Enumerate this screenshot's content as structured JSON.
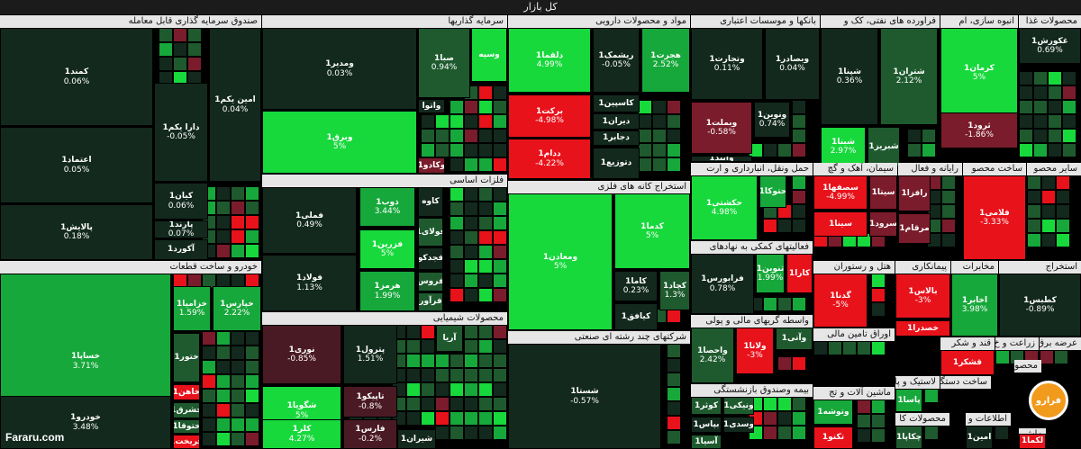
{
  "title": "کل بازار",
  "watermark_text": "Fararu.com",
  "watermark_logo": "فرارو",
  "colors": {
    "dark": "#13291e",
    "mid": "#1e5a2e",
    "green": "#17a83b",
    "bright": "#17d93c",
    "red": "#e8121b",
    "dred": "#7a1c2b",
    "wine": "#4a1a24"
  },
  "chart_data": {
    "type": "treemap",
    "title": "کل بازار",
    "sectors": [
      {
        "name": "صندوق سرمایه گذاری قابل معامله",
        "stocks": [
          {
            "name": "کمند1",
            "change": "0.06%"
          },
          {
            "name": "دارا یکم1",
            "change": "-0.05%"
          },
          {
            "name": "امین یکم1",
            "change": "0.04%"
          },
          {
            "name": "اعتماد1",
            "change": "0.05%"
          },
          {
            "name": "کیان1",
            "change": "0.06%"
          },
          {
            "name": "پالایش1",
            "change": "0.18%"
          },
          {
            "name": "پارند1",
            "change": "0.07%"
          },
          {
            "name": "آکورد1",
            "change": ""
          }
        ]
      },
      {
        "name": "سرمایه گذاریها",
        "stocks": [
          {
            "name": "ومدیر1",
            "change": "0.03%"
          },
          {
            "name": "صبا1",
            "change": "0.94%"
          },
          {
            "name": "وبرق1",
            "change": "5%"
          },
          {
            "name": "وسپه",
            "change": ""
          },
          {
            "name": "واتوا",
            "change": ""
          },
          {
            "name": "وکادو1",
            "change": ""
          }
        ]
      },
      {
        "name": "فلزات اساسی",
        "stocks": [
          {
            "name": "فملی1",
            "change": "0.49%"
          },
          {
            "name": "ذوب1",
            "change": "3.44%"
          },
          {
            "name": "فزرین1",
            "change": "5%"
          },
          {
            "name": "فولاد1",
            "change": "1.13%"
          },
          {
            "name": "هرمز1",
            "change": "1.99%"
          },
          {
            "name": "کاوه",
            "change": ""
          },
          {
            "name": "فولای1",
            "change": ""
          },
          {
            "name": "فجدکو",
            "change": ""
          },
          {
            "name": "فروس",
            "change": ""
          },
          {
            "name": "فرآور",
            "change": ""
          }
        ]
      },
      {
        "name": "محصولات شیمیایی",
        "stocks": [
          {
            "name": "نوری1",
            "change": "-0.85%"
          },
          {
            "name": "پترول1",
            "change": "1.51%"
          },
          {
            "name": "شگویا1",
            "change": "5%"
          },
          {
            "name": "تاپیکو1",
            "change": "-0.8%"
          },
          {
            "name": "کلر1",
            "change": "4.27%"
          },
          {
            "name": "فارس1",
            "change": "-0.2%"
          },
          {
            "name": "آریا",
            "change": ""
          },
          {
            "name": "شیران1",
            "change": ""
          }
        ]
      },
      {
        "name": "مواد و محصولات دارویی",
        "stocks": [
          {
            "name": "دلقما1",
            "change": "4.99%"
          },
          {
            "name": "ریشمک1",
            "change": "-0.05%"
          },
          {
            "name": "هجرت1",
            "change": "2.52%"
          },
          {
            "name": "برکت1",
            "change": "-4.98%"
          },
          {
            "name": "کاسپین1",
            "change": ""
          },
          {
            "name": "دیران1",
            "change": ""
          },
          {
            "name": "دجابر1",
            "change": ""
          },
          {
            "name": "ددام1",
            "change": "-4.22%"
          },
          {
            "name": "دتوزیع1",
            "change": ""
          }
        ]
      },
      {
        "name": "استخراج کانه های فلزی",
        "stocks": [
          {
            "name": "کدما1",
            "change": "5%"
          },
          {
            "name": "ومعادن1",
            "change": "5%"
          },
          {
            "name": "کاما1",
            "change": "0.23%"
          },
          {
            "name": "کچاد1",
            "change": "1.3%"
          },
          {
            "name": "کیافق1",
            "change": ""
          }
        ]
      },
      {
        "name": "شرکتهای چند رشته ای صنعتی",
        "stocks": [
          {
            "name": "شستا1",
            "change": "-0.57%"
          }
        ]
      },
      {
        "name": "خودرو و ساخت قطعات",
        "stocks": [
          {
            "name": "خساپا1",
            "change": "3.71%"
          },
          {
            "name": "خزامیا1",
            "change": "1.59%"
          },
          {
            "name": "خپارس1",
            "change": "2.22%"
          },
          {
            "name": "ختور1",
            "change": ""
          },
          {
            "name": "خاهن1",
            "change": ""
          },
          {
            "name": "خشرق1",
            "change": ""
          },
          {
            "name": "خودرو1",
            "change": "3.48%"
          },
          {
            "name": "ختوقا1",
            "change": ""
          },
          {
            "name": "خریخت1",
            "change": ""
          }
        ]
      },
      {
        "name": "بانکها و موسسات اعتباری",
        "stocks": [
          {
            "name": "وتجارت1",
            "change": "0.11%"
          },
          {
            "name": "وبصادر1",
            "change": "0.04%"
          },
          {
            "name": "وبملت1",
            "change": "-0.58%"
          },
          {
            "name": "ونوین1",
            "change": "0.74%"
          },
          {
            "name": "وآیند1",
            "change": ""
          }
        ]
      },
      {
        "name": "فراورده های نفتی، کک و",
        "stocks": [
          {
            "name": "شپنا1",
            "change": "0.36%"
          },
          {
            "name": "شتران1",
            "change": "2.12%"
          },
          {
            "name": "شبنا1",
            "change": "2.97%"
          },
          {
            "name": "شبریز1",
            "change": ""
          }
        ]
      },
      {
        "name": "انبوه سازی، ام",
        "stocks": [
          {
            "name": "کرمان1",
            "change": "5%"
          },
          {
            "name": "ثرود1",
            "change": "-1.86%"
          }
        ]
      },
      {
        "name": "محصولات غذا",
        "stocks": [
          {
            "name": "غکورش1",
            "change": "0.69%"
          }
        ]
      },
      {
        "name": "حمل ونقل، انبارداری و ارت",
        "stocks": [
          {
            "name": "حکشتی1",
            "change": "4.98%"
          },
          {
            "name": "حتوکا1",
            "change": ""
          }
        ]
      },
      {
        "name": "فعالیتهای کمکی به نهادهای",
        "stocks": [
          {
            "name": "فرابورس1",
            "change": "0.78%"
          },
          {
            "name": "ثنوین1",
            "change": "1.99%"
          },
          {
            "name": "کارا1",
            "change": ""
          }
        ]
      },
      {
        "name": "واسطه گریهای مالی و پولی",
        "stocks": [
          {
            "name": "واحصا1",
            "change": "2.42%"
          },
          {
            "name": "ولانا1",
            "change": "-3%"
          },
          {
            "name": "وآتی1",
            "change": ""
          }
        ]
      },
      {
        "name": "بیمه وصندوق بازنشستگی",
        "stocks": [
          {
            "name": "کوثر1",
            "change": ""
          },
          {
            "name": "ونیکی1",
            "change": ""
          },
          {
            "name": "بپاس1",
            "change": ""
          },
          {
            "name": "وسدی1",
            "change": ""
          },
          {
            "name": "آسیا1",
            "change": ""
          }
        ]
      },
      {
        "name": "سیمان، آهک و گچ",
        "stocks": [
          {
            "name": "سصفها1",
            "change": "-4.99%"
          },
          {
            "name": "سینا1",
            "change": ""
          },
          {
            "name": "سیتا1",
            "change": ""
          },
          {
            "name": "سرود1",
            "change": ""
          }
        ]
      },
      {
        "name": "رایانه و فعال",
        "stocks": [
          {
            "name": "رافزا1",
            "change": ""
          },
          {
            "name": "مرقام1",
            "change": ""
          }
        ]
      },
      {
        "name": "ساخت محصو",
        "stocks": [
          {
            "name": "فلامی1",
            "change": "-3.33%"
          }
        ]
      },
      {
        "name": "سایر محصو",
        "stocks": []
      },
      {
        "name": "هتل و رستوران",
        "stocks": [
          {
            "name": "گدنا1",
            "change": "-5%"
          }
        ]
      },
      {
        "name": "پیمانکاری",
        "stocks": [
          {
            "name": "بالاس1",
            "change": "-3%"
          },
          {
            "name": "خصدرا1",
            "change": ""
          }
        ]
      },
      {
        "name": "مخابرات",
        "stocks": [
          {
            "name": "اخابر1",
            "change": "3.98%"
          }
        ]
      },
      {
        "name": "استخراج",
        "stocks": [
          {
            "name": "کطبس1",
            "change": "-0.89%"
          }
        ]
      },
      {
        "name": "عرضه برق",
        "stocks": []
      },
      {
        "name": "اوراق تامین مالی",
        "stocks": []
      },
      {
        "name": "قند و شکر",
        "stocks": [
          {
            "name": "قشکر1",
            "change": ""
          }
        ]
      },
      {
        "name": "زراعت و خ",
        "stocks": []
      },
      {
        "name": "محصو",
        "stocks": []
      },
      {
        "name": "ساخت دستگا",
        "stocks": []
      },
      {
        "name": "لاستیک و پلا",
        "stocks": [
          {
            "name": "پاسا1",
            "change": ""
          }
        ]
      },
      {
        "name": "ماشین آلات و تج",
        "stocks": [
          {
            "name": "وتوشه1",
            "change": ""
          },
          {
            "name": "تکنو1",
            "change": ""
          }
        ]
      },
      {
        "name": "محصولات کا",
        "stocks": [
          {
            "name": "چکاپا1",
            "change": ""
          }
        ]
      },
      {
        "name": "اطلاعات و",
        "stocks": [
          {
            "name": "امین1",
            "change": ""
          }
        ]
      },
      {
        "name": "ماش",
        "stocks": [
          {
            "name": "لکما1",
            "change": ""
          }
        ]
      }
    ]
  }
}
